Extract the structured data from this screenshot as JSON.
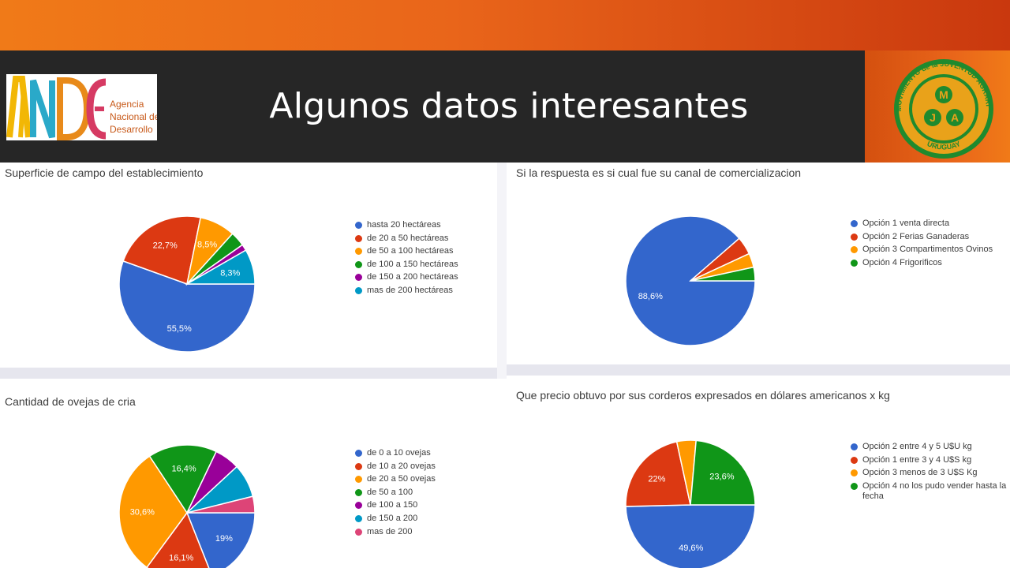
{
  "slide": {
    "title": "Algunos datos interesantes"
  },
  "logos": {
    "ande_text_lines": [
      "Agencia",
      "Nacional de",
      "Desarrollo"
    ],
    "mja_top_text": "MOVIMIENTO de la JUVENTUD AGRARIA",
    "mja_bottom_text": "URUGUAY",
    "mja_letters": [
      "M",
      "J",
      "A"
    ]
  },
  "colors": {
    "blue": "#3366cc",
    "red": "#dc3912",
    "orange": "#ff9900",
    "green": "#109618",
    "purple": "#990099",
    "teal": "#0099c6",
    "pink": "#dd4477",
    "accent": "#e9651a"
  },
  "chart_data": [
    {
      "type": "pie",
      "title": "Superficie de campo del establecimiento",
      "categories": [
        "hasta 20 hectáreas",
        "de 20 a 50 hectáreas",
        "de 50 a 100 hectáreas",
        "de 100 a 150 hectáreas",
        "de 150 a 200 hectáreas",
        "mas de 200 hectáreas"
      ],
      "values": [
        55.5,
        22.7,
        8.5,
        3.5,
        1.5,
        8.3
      ],
      "data_labels": [
        "55,5%",
        "22,7%",
        "8,5%",
        "",
        "",
        "8,3%"
      ],
      "colors": [
        "#3366cc",
        "#dc3912",
        "#ff9900",
        "#109618",
        "#990099",
        "#0099c6"
      ],
      "legend_position": "right"
    },
    {
      "type": "pie",
      "title": "Si la respuesta es si cual fue su canal de comercializacion",
      "categories": [
        "Opción 1 venta directa",
        "Opción 2 Ferias Ganaderas",
        "Opción 3 Compartimentos Ovinos",
        "Opción 4 Frigorificos"
      ],
      "values": [
        88.6,
        4.5,
        3.5,
        3.4
      ],
      "data_labels": [
        "88,6%",
        "",
        "",
        ""
      ],
      "colors": [
        "#3366cc",
        "#dc3912",
        "#ff9900",
        "#109618"
      ],
      "legend_position": "right"
    },
    {
      "type": "pie",
      "title": "Cantidad de ovejas de cria",
      "categories": [
        "de 0 a 10 ovejas",
        "de 10 a 20 ovejas",
        "de 20 a 50 ovejas",
        "de 50 a 100",
        "de 100 a 150",
        "de 150 a 200",
        "mas de 200"
      ],
      "values": [
        19,
        16.1,
        30.6,
        16.4,
        6,
        8,
        3.9
      ],
      "data_labels": [
        "19%",
        "16,1%",
        "30,6%",
        "16,4%",
        "",
        "",
        ""
      ],
      "colors": [
        "#3366cc",
        "#dc3912",
        "#ff9900",
        "#109618",
        "#990099",
        "#0099c6",
        "#dd4477"
      ],
      "legend_position": "right"
    },
    {
      "type": "pie",
      "title": "Que precio obtuvo por sus corderos expresados en dólares americanos x kg",
      "categories": [
        "Opción 2 entre 4 y 5 U$U kg",
        "Opción 1 entre 3 y 4 U$S kg",
        "Opción 3 menos de 3 U$S Kg",
        "Opción 4 no los pudo vender hasta la fecha"
      ],
      "values": [
        49.6,
        22,
        4.8,
        23.6
      ],
      "data_labels": [
        "49,6%",
        "22%",
        "",
        "23,6%"
      ],
      "colors": [
        "#3366cc",
        "#dc3912",
        "#ff9900",
        "#109618"
      ],
      "legend_position": "right"
    }
  ]
}
